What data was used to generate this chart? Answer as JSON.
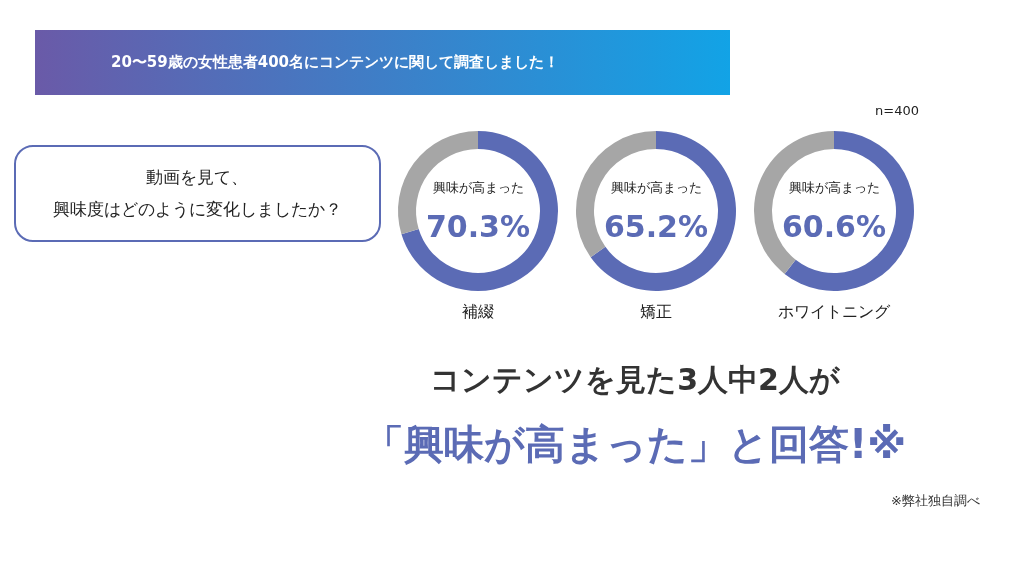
{
  "chart_data": [
    {
      "type": "other",
      "title": "20〜59歳の女性患者400名にコンテンツに関して調査しました！",
      "subtitle": "動画を見て、興味度はどのように変化しましたか？",
      "annotations": [
        "コンテンツを見た3人中2人が",
        "「興味が高まった」と回答!※",
        "※弊社独自調べ"
      ]
    },
    {
      "type": "donut",
      "title": "補綴",
      "categories": [
        "興味が高まった",
        null
      ],
      "values": [
        70.3,
        29.7
      ],
      "colors": [
        "#5b6bb5",
        "#a6a6a6"
      ],
      "value_labels": [
        "70.3%",
        null
      ],
      "legend": false
    },
    {
      "type": "donut",
      "title": "矯正",
      "categories": [
        "興味が高まった",
        null
      ],
      "values": [
        65.2,
        34.8
      ],
      "colors": [
        "#5b6bb5",
        "#a6a6a6"
      ],
      "value_labels": [
        "65.2%",
        null
      ],
      "legend": false
    },
    {
      "type": "donut",
      "title": "ホワイトニング",
      "categories": [
        "興味が高まった",
        null
      ],
      "values": [
        60.6,
        39.4
      ],
      "colors": [
        "#5b6bb5",
        "#a6a6a6"
      ],
      "value_labels": [
        "60.6%",
        null
      ],
      "legend": false,
      "annotations": [
        "n=400"
      ]
    }
  ]
}
